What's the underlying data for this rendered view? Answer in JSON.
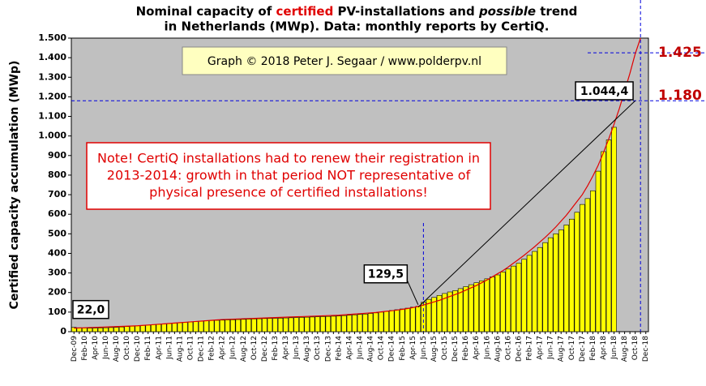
{
  "chart_data": {
    "type": "bar",
    "title_line1": [
      "Nominal  capacity  of ",
      "certified",
      " PV-installations  and ",
      "possible",
      " trend"
    ],
    "title_line2": "in Netherlands (MWp). Data: monthly  reports by CertiQ.",
    "y_label": "Certified  capacity  accumulation  (MWp)",
    "copyright": "Graph © 2018 Peter J. Segaar / www.polderpv.nl",
    "note": [
      "Note! CertiQ installations had to renew their registration in",
      "2013-2014:  growth in that period NOT representative of",
      "physical presence of certified installations!"
    ],
    "categories": [
      "Dec-09",
      null,
      "Feb-10",
      null,
      "Apr-10",
      null,
      "Jun-10",
      null,
      "Aug-10",
      null,
      "Oct-10",
      null,
      "Dec-10",
      null,
      "Feb-11",
      null,
      "Apr-11",
      null,
      "Jun-11",
      null,
      "Aug-11",
      null,
      "Oct-11",
      null,
      "Dec-11",
      null,
      "Feb-12",
      null,
      "Apr-12",
      null,
      "Jun-12",
      null,
      "Aug-12",
      null,
      "Oct-12",
      null,
      "Dec-12",
      null,
      "Feb-13",
      null,
      "Apr-13",
      null,
      "Jun-13",
      null,
      "Aug-13",
      null,
      "Oct-13",
      null,
      "Dec-13",
      null,
      "Feb-14",
      null,
      "Apr-14",
      null,
      "Jun-14",
      null,
      "Aug-14",
      null,
      "Oct-14",
      null,
      "Dec-14",
      null,
      "Feb-15",
      null,
      "Apr-15",
      null,
      "Jun-15",
      null,
      "Aug-15",
      null,
      "Oct-15",
      null,
      "Dec-15",
      null,
      "Feb-16",
      null,
      "Apr-16",
      null,
      "Jun-16",
      null,
      "Aug-16",
      null,
      "Oct-16",
      null,
      "Dec-16",
      null,
      "Feb-17",
      null,
      "Apr-17",
      null,
      "Jun-17",
      null,
      "Aug-17",
      null,
      "Oct-17",
      null,
      "Dec-17",
      null,
      "Feb-18",
      null,
      "Apr-18",
      null,
      "Jun-18",
      null,
      "Aug-18",
      null,
      "Oct-18",
      null,
      "Dec-18"
    ],
    "values": [
      22.0,
      20,
      19,
      18,
      18,
      19,
      20,
      21,
      22,
      24,
      26,
      28,
      30,
      32,
      34,
      36,
      38,
      40,
      42,
      44,
      46,
      48,
      50,
      52,
      54,
      56,
      57,
      58,
      59,
      60,
      61,
      62,
      63,
      64,
      65,
      66,
      67,
      68,
      68,
      69,
      70,
      71,
      72,
      73,
      74,
      75,
      76,
      77,
      78,
      79,
      80,
      82,
      84,
      86,
      88,
      90,
      93,
      96,
      100,
      104,
      108,
      112,
      116,
      120,
      125,
      129.5,
      150,
      165,
      175,
      185,
      195,
      203,
      210,
      220,
      230,
      240,
      250,
      260,
      270,
      280,
      290,
      305,
      320,
      335,
      350,
      370,
      390,
      410,
      430,
      455,
      480,
      500,
      520,
      545,
      575,
      610,
      650,
      680,
      720,
      820,
      920,
      980,
      1044.4,
      null,
      null,
      null,
      null,
      null,
      null
    ],
    "value_labels": [
      "22,0",
      null,
      null,
      null,
      null,
      null,
      null,
      null,
      null,
      null,
      null,
      null,
      null,
      null,
      null,
      null,
      null,
      null,
      null,
      null,
      null,
      null,
      null,
      null,
      null,
      null,
      null,
      null,
      null,
      null,
      null,
      null,
      null,
      null,
      null,
      null,
      null,
      null,
      null,
      null,
      null,
      null,
      null,
      null,
      null,
      null,
      null,
      null,
      null,
      null,
      null,
      null,
      null,
      null,
      null,
      null,
      null,
      null,
      null,
      null,
      null,
      null,
      null,
      null,
      null,
      "129,5",
      null,
      null,
      null,
      null,
      null,
      null,
      null,
      null,
      null,
      null,
      null,
      null,
      null,
      null,
      null,
      null,
      null,
      null,
      null,
      null,
      null,
      null,
      null,
      null,
      null,
      null,
      null,
      null,
      null,
      null,
      null,
      null,
      null,
      null,
      null,
      null,
      "1.044,4",
      null,
      null,
      null,
      null,
      null,
      null
    ],
    "color": "#ffff00",
    "trend": {
      "color": "#e00000",
      "values": [
        18,
        19,
        20,
        21,
        22,
        23,
        24,
        25,
        26,
        27,
        28,
        29,
        30,
        32,
        34,
        36,
        38,
        40,
        42,
        44,
        46,
        48,
        50,
        52,
        54,
        56,
        58,
        60,
        62,
        63,
        64,
        65,
        66,
        67,
        68,
        69,
        70,
        71,
        72,
        73,
        74,
        75,
        76,
        77,
        78,
        79,
        80,
        81,
        82,
        83,
        84,
        86,
        88,
        90,
        92,
        94,
        96,
        98,
        101,
        104,
        107,
        110,
        114,
        118,
        123,
        129,
        136,
        144,
        152,
        160,
        170,
        180,
        190,
        200,
        212,
        224,
        236,
        250,
        264,
        280,
        296,
        312,
        330,
        350,
        370,
        390,
        412,
        434,
        458,
        482,
        508,
        535,
        565,
        595,
        630,
        665,
        700,
        745,
        795,
        850,
        915,
        985,
        1060,
        1140,
        1230,
        1320,
        1420,
        1500,
        null
      ]
    },
    "linear_trend": {
      "color": "#000000",
      "values": [
        [
          65,
          125
        ],
        [
          106,
          1180
        ]
      ]
    },
    "reference_lines": [
      {
        "value": 1425,
        "label": "1.425"
      },
      {
        "value": 1180,
        "label": "1.180"
      }
    ],
    "vertical_lines": [
      66,
      107
    ],
    "ylim": [
      0,
      1500
    ],
    "yticks": [
      0,
      100,
      200,
      300,
      400,
      500,
      600,
      700,
      800,
      900,
      {
        "value": 1000,
        "label": "1.000"
      },
      {
        "value": 1100,
        "label": "1.100"
      },
      {
        "value": 1200,
        "label": "1.200"
      },
      {
        "value": 1300,
        "label": "1.300"
      },
      {
        "value": 1400,
        "label": "1.400"
      },
      {
        "value": 1500,
        "label": "1.500"
      }
    ],
    "grid": false
  }
}
